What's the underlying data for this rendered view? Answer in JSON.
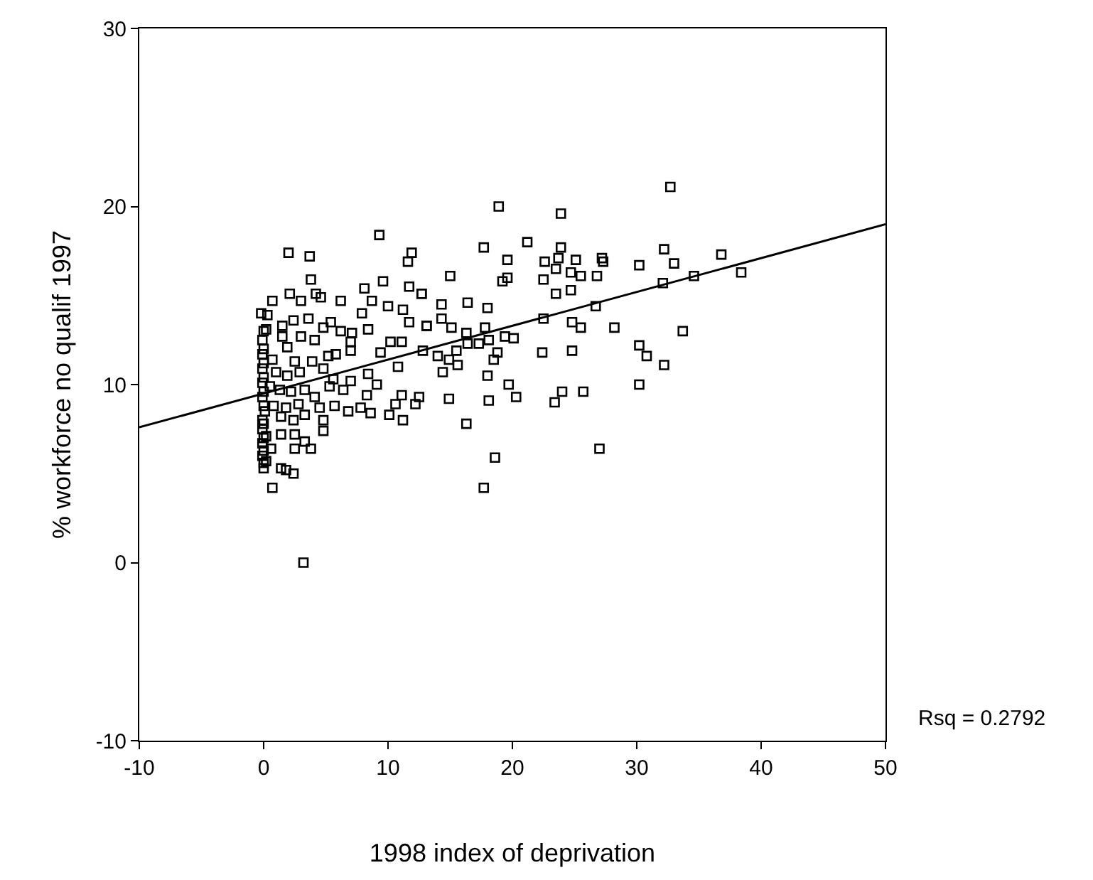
{
  "chart_data": {
    "type": "scatter",
    "xlabel": "1998 index of deprivation",
    "ylabel": "% workforce no qualif 1997",
    "xlim": [
      -10,
      50
    ],
    "xticks": [
      -10,
      0,
      10,
      20,
      30,
      40,
      50
    ],
    "ylim": [
      -10,
      30
    ],
    "yticks": [
      -10,
      0,
      10,
      20,
      30
    ],
    "annotations": [
      "Rsq = 0.2792"
    ],
    "series": [
      {
        "marker": "square",
        "color": "#000000",
        "x": [
          32.7,
          32.2,
          30.2,
          33.0,
          36.8,
          32.1,
          34.6,
          38.4,
          33.7,
          30.2,
          30.8,
          32.2,
          30.2,
          18.9,
          23.9,
          17.7,
          21.2,
          23.9,
          19.6,
          22.6,
          23.7,
          25.1,
          27.2,
          27.3,
          15.0,
          19.2,
          19.6,
          22.5,
          23.5,
          24.7,
          25.5,
          26.8,
          12.7,
          23.5,
          24.7,
          14.3,
          16.4,
          18.0,
          26.7,
          14.3,
          13.1,
          15.1,
          17.8,
          22.5,
          24.8,
          25.5,
          28.2,
          16.3,
          16.4,
          17.3,
          18.1,
          19.4,
          20.1,
          15.5,
          14.0,
          14.9,
          15.6,
          14.4,
          18.8,
          18.5,
          22.4,
          24.8,
          18.0,
          19.7,
          20.3,
          24.0,
          23.4,
          25.7,
          14.9,
          18.1,
          16.3,
          18.6,
          17.7,
          27.0,
          9.3,
          2.0,
          3.7,
          11.9,
          11.6,
          3.8,
          9.6,
          8.1,
          11.7,
          12.7,
          0.7,
          2.1,
          3.0,
          4.2,
          4.6,
          6.2,
          8.7,
          10.0,
          11.2,
          7.9,
          -0.2,
          0.3,
          3.6,
          11.7,
          13.1,
          1.5,
          2.4,
          5.4,
          0.2,
          4.8,
          6.2,
          7.1,
          8.4,
          7.0,
          3.0,
          4.1,
          1.5,
          -0.1,
          10.2,
          11.1,
          1.9,
          7.0,
          9.4,
          12.8,
          10.8,
          5.8,
          5.2,
          -0.1,
          0.7,
          2.5,
          3.9,
          4.8,
          -0.1,
          1.0,
          1.9,
          2.9,
          8.4,
          9.1,
          5.6,
          7.0,
          6.4,
          5.3,
          -0.1,
          0.5,
          1.3,
          2.2,
          3.3,
          8.3,
          11.1,
          12.5,
          10.6,
          12.2,
          4.1,
          4.5,
          5.7,
          6.8,
          7.8,
          8.6,
          10.1,
          11.2,
          -0.1,
          0.1,
          0.8,
          1.8,
          2.8,
          -0.1,
          1.4,
          2.4,
          3.3,
          4.8,
          4.8,
          -0.1,
          0.2,
          1.4,
          2.5,
          3.3,
          2.5,
          3.8,
          -0.1,
          0.6,
          -0.1,
          0.2,
          0.0,
          1.4,
          1.8,
          2.4,
          0.7,
          3.2,
          0.0,
          0.0,
          0.0,
          0.0,
          0.0,
          0.0,
          0.0,
          0.0,
          0.0,
          0.0
        ],
        "values": [
          21.1,
          17.6,
          16.7,
          16.8,
          17.3,
          15.7,
          16.1,
          16.3,
          13.0,
          12.2,
          11.6,
          11.1,
          10.0,
          20.0,
          19.6,
          17.7,
          18.0,
          17.7,
          17.0,
          16.9,
          17.1,
          17.0,
          17.1,
          16.9,
          16.1,
          15.8,
          16.0,
          15.9,
          16.5,
          16.3,
          16.1,
          16.1,
          15.1,
          15.1,
          15.3,
          14.5,
          14.6,
          14.3,
          14.4,
          13.7,
          13.3,
          13.2,
          13.2,
          13.7,
          13.5,
          13.2,
          13.2,
          12.9,
          12.3,
          12.3,
          12.5,
          12.7,
          12.6,
          11.9,
          11.6,
          11.4,
          11.1,
          10.7,
          11.8,
          11.4,
          11.8,
          11.9,
          10.5,
          10.0,
          9.3,
          9.6,
          9.0,
          9.6,
          9.2,
          9.1,
          7.8,
          5.9,
          4.2,
          6.4,
          18.4,
          17.4,
          17.2,
          17.4,
          16.9,
          15.9,
          15.8,
          15.4,
          15.5,
          15.1,
          14.7,
          15.1,
          14.7,
          15.1,
          14.9,
          14.7,
          14.7,
          14.4,
          14.2,
          14.0,
          14.0,
          13.9,
          13.7,
          13.5,
          13.3,
          13.3,
          13.6,
          13.5,
          13.1,
          13.2,
          13.0,
          12.9,
          13.1,
          12.4,
          12.7,
          12.5,
          12.7,
          12.5,
          12.4,
          12.4,
          12.1,
          11.9,
          11.8,
          11.9,
          11.0,
          11.7,
          11.6,
          11.7,
          11.4,
          11.3,
          11.3,
          10.9,
          10.9,
          10.7,
          10.5,
          10.7,
          10.6,
          10.0,
          10.3,
          10.2,
          9.7,
          9.9,
          10.1,
          9.9,
          9.7,
          9.6,
          9.7,
          9.4,
          9.4,
          9.3,
          8.9,
          8.9,
          9.3,
          8.7,
          8.8,
          8.5,
          8.7,
          8.4,
          8.3,
          8.0,
          9.3,
          8.5,
          8.8,
          8.7,
          8.9,
          8.0,
          8.2,
          8.0,
          8.3,
          8.0,
          7.4,
          7.5,
          7.1,
          7.2,
          7.2,
          6.8,
          6.4,
          6.4,
          6.7,
          6.4,
          6.0,
          5.7,
          5.3,
          5.3,
          5.2,
          5.0,
          4.2,
          0.0,
          13.0,
          12.0,
          11.2,
          10.4,
          9.6,
          8.8,
          7.8,
          7.0,
          6.3,
          5.6
        ]
      },
      {
        "type": "line",
        "color": "#000000",
        "line_style": "solid",
        "x": [
          -10,
          50
        ],
        "values": [
          7.6,
          19.0
        ]
      }
    ]
  }
}
